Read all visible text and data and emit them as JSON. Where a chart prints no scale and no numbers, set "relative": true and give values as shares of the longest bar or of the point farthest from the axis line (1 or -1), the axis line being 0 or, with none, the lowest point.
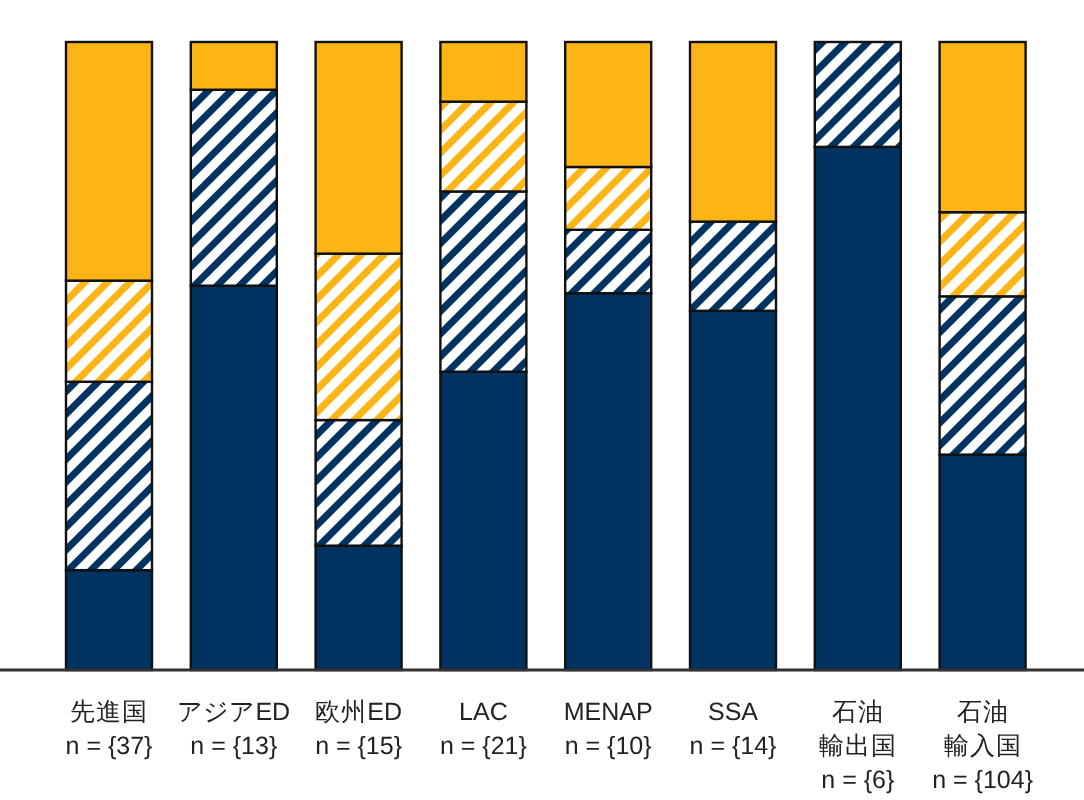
{
  "chart_data": {
    "type": "bar",
    "stacked": true,
    "relative": true,
    "categories": [
      "先進国\nn = {37}",
      "アジアED\nn = {13}",
      "欧州ED\nn = {15}",
      "LAC\nn = {21}",
      "MENAP\nn = {10}",
      "SSA\nn = {14}",
      "石油輸出国\nn = {6}",
      "石油輸入国\nn = {104}"
    ],
    "series": [
      {
        "color": "#003362",
        "values": [
          0.159,
          0.612,
          0.198,
          0.475,
          0.6,
          0.572,
          0.833,
          0.343
        ]
      },
      {
        "color": "#003362",
        "values": [
          0.3,
          0.312,
          0.2,
          0.287,
          0.101,
          0.142,
          0.167,
          0.252
        ]
      },
      {
        "color": "#fdb515",
        "values": [
          0.161,
          0,
          0.265,
          0.143,
          0.1,
          0,
          0,
          0.134
        ]
      },
      {
        "color": "#fdb515",
        "values": [
          0.38,
          0.076,
          0.337,
          0.095,
          0.199,
          0.286,
          0,
          0.271
        ]
      }
    ]
  }
}
